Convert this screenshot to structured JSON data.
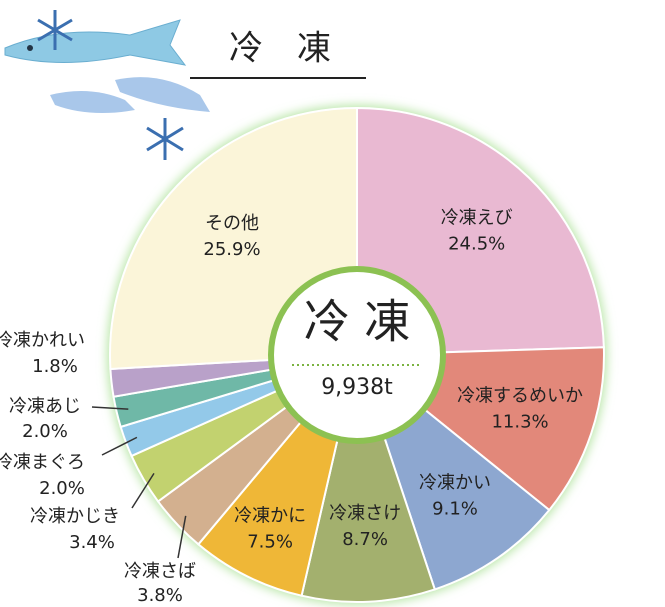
{
  "chart_data": {
    "type": "donut",
    "title": "冷　凍",
    "center_title": "冷 凍",
    "center_value": "9,938t",
    "categories": [
      "冷凍えび",
      "冷凍するめいか",
      "冷凍かい",
      "冷凍さけ",
      "冷凍かに",
      "冷凍さば",
      "冷凍かじき",
      "冷凍まぐろ",
      "冷凍あじ",
      "冷凍かれい",
      "その他"
    ],
    "values": [
      24.5,
      11.3,
      9.1,
      8.7,
      7.5,
      3.8,
      3.4,
      2.0,
      2.0,
      1.8,
      25.9
    ],
    "value_labels": [
      "24.5%",
      "11.3%",
      "9.1%",
      "8.7%",
      "7.5%",
      "3.8%",
      "3.4%",
      "2.0%",
      "2.0%",
      "1.8%",
      "25.9%"
    ],
    "colors": [
      "#e9b9d2",
      "#e2887a",
      "#8da7d0",
      "#a3b06e",
      "#efb737",
      "#d3b08f",
      "#c2d26f",
      "#93c9e9",
      "#6fb8a7",
      "#b9a1c9",
      "#fbf5d9"
    ]
  }
}
